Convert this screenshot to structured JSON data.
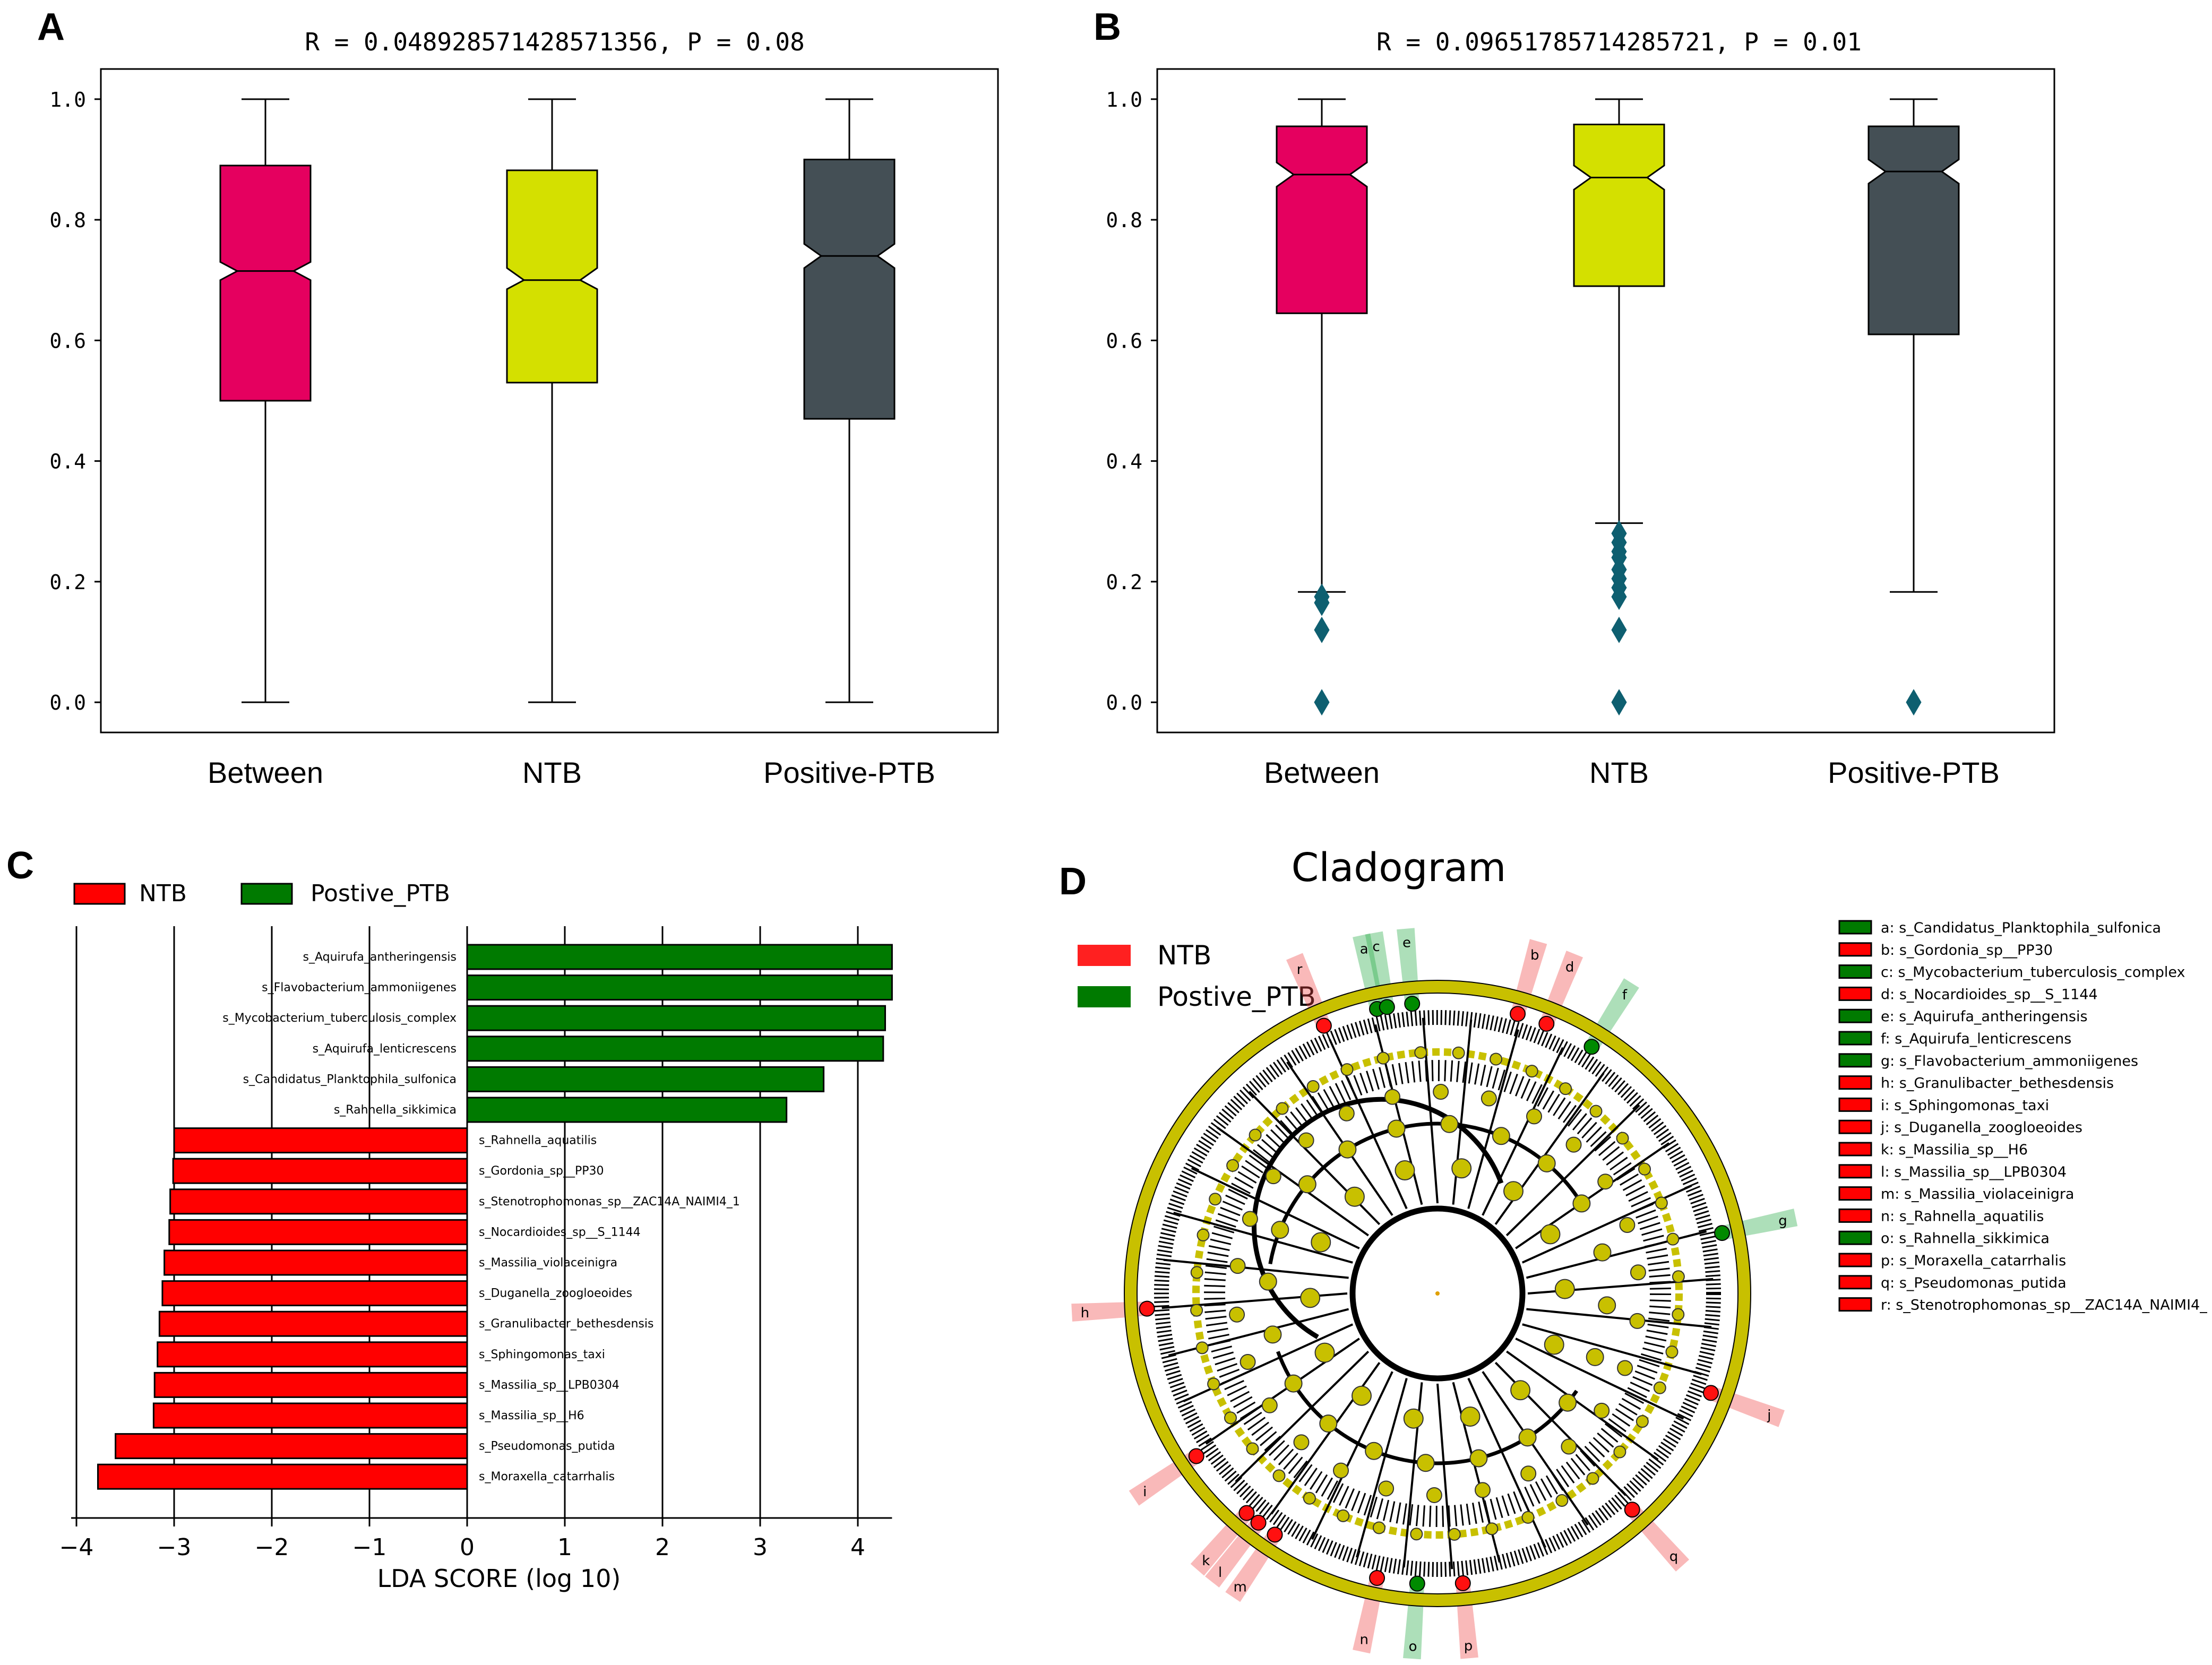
{
  "panel_labels": {
    "a": "A",
    "b": "B",
    "c": "C",
    "d": "D"
  },
  "colors": {
    "between": "#e5005f",
    "ntb": "#d4e000",
    "ptb": "#444f55",
    "outlier": "#0e5f70",
    "lda_red": "#ff0000",
    "lda_green": "#007a00",
    "node": "#c8c000"
  },
  "chart_data": [
    {
      "type": "boxplot",
      "panel": "A",
      "title": "R = 0.048928571428571356, P = 0.08",
      "categories": [
        "Between",
        "NTB",
        "Positive-PTB"
      ],
      "ylim": [
        -0.05,
        1.05
      ],
      "yticks": [
        "0.0",
        "0.2",
        "0.4",
        "0.6",
        "0.8",
        "1.0"
      ],
      "boxes": [
        {
          "name": "Between",
          "min": 0.0,
          "q1": 0.5,
          "median": 0.715,
          "q3": 0.89,
          "max": 1.0,
          "notch_lo": 0.7,
          "notch_hi": 0.73,
          "outliers": []
        },
        {
          "name": "NTB",
          "min": 0.0,
          "q1": 0.53,
          "median": 0.7,
          "q3": 0.882,
          "max": 1.0,
          "notch_lo": 0.685,
          "notch_hi": 0.72,
          "outliers": []
        },
        {
          "name": "Positive-PTB",
          "min": 0.0,
          "q1": 0.47,
          "median": 0.74,
          "q3": 0.9,
          "max": 1.0,
          "notch_lo": 0.72,
          "notch_hi": 0.76,
          "outliers": []
        }
      ]
    },
    {
      "type": "boxplot",
      "panel": "B",
      "title": "R = 0.09651785714285721, P = 0.01",
      "categories": [
        "Between",
        "NTB",
        "Positive-PTB"
      ],
      "ylim": [
        -0.05,
        1.05
      ],
      "yticks": [
        "0.0",
        "0.2",
        "0.4",
        "0.6",
        "0.8",
        "1.0"
      ],
      "boxes": [
        {
          "name": "Between",
          "min": 0.183,
          "q1": 0.645,
          "median": 0.875,
          "q3": 0.955,
          "max": 1.0,
          "notch_lo": 0.855,
          "notch_hi": 0.895,
          "outliers": [
            0.175,
            0.165,
            0.12,
            0.0
          ]
        },
        {
          "name": "NTB",
          "min": 0.297,
          "q1": 0.69,
          "median": 0.87,
          "q3": 0.958,
          "max": 1.0,
          "notch_lo": 0.85,
          "notch_hi": 0.89,
          "outliers": [
            0.28,
            0.265,
            0.25,
            0.24,
            0.22,
            0.205,
            0.19,
            0.175,
            0.12,
            0.0
          ]
        },
        {
          "name": "Positive-PTB",
          "min": 0.183,
          "q1": 0.61,
          "median": 0.88,
          "q3": 0.955,
          "max": 1.0,
          "notch_lo": 0.86,
          "notch_hi": 0.9,
          "outliers": [
            0.0
          ]
        }
      ]
    },
    {
      "type": "bar",
      "panel": "C",
      "orientation": "horizontal",
      "xlabel": "LDA SCORE (log 10)",
      "xlim": [
        -4,
        4.3
      ],
      "xticks": [
        "−4",
        "−3",
        "−2",
        "−1",
        "0",
        "1",
        "2",
        "3",
        "4"
      ],
      "legend": [
        {
          "name": "NTB",
          "color": "#ff0000"
        },
        {
          "name": "Postive_PTB",
          "color": "#007a00"
        }
      ],
      "bars": [
        {
          "label": "s_Aquirufa_antheringensis",
          "value": 4.35,
          "group": "Postive_PTB"
        },
        {
          "label": "s_Flavobacterium_ammoniigenes",
          "value": 4.35,
          "group": "Postive_PTB"
        },
        {
          "label": "s_Mycobacterium_tuberculosis_complex",
          "value": 4.28,
          "group": "Postive_PTB"
        },
        {
          "label": "s_Aquirufa_lenticrescens",
          "value": 4.26,
          "group": "Postive_PTB"
        },
        {
          "label": "s_Candidatus_Planktophila_sulfonica",
          "value": 3.65,
          "group": "Postive_PTB"
        },
        {
          "label": "s_Rahnella_sikkimica",
          "value": 3.27,
          "group": "Postive_PTB"
        },
        {
          "label": "s_Rahnella_aquatilis",
          "value": -3.0,
          "group": "NTB"
        },
        {
          "label": "s_Gordonia_sp__PP30",
          "value": -3.01,
          "group": "NTB"
        },
        {
          "label": "s_Stenotrophomonas_sp__ZAC14A_NAIMI4_1",
          "value": -3.04,
          "group": "NTB"
        },
        {
          "label": "s_Nocardioides_sp__S_1144",
          "value": -3.05,
          "group": "NTB"
        },
        {
          "label": "s_Massilia_violaceinigra",
          "value": -3.1,
          "group": "NTB"
        },
        {
          "label": "s_Duganella_zoogloeoides",
          "value": -3.12,
          "group": "NTB"
        },
        {
          "label": "s_Granulibacter_bethesdensis",
          "value": -3.15,
          "group": "NTB"
        },
        {
          "label": "s_Sphingomonas_taxi",
          "value": -3.17,
          "group": "NTB"
        },
        {
          "label": "s_Massilia_sp__LPB0304",
          "value": -3.2,
          "group": "NTB"
        },
        {
          "label": "s_Massilia_sp__H6",
          "value": -3.21,
          "group": "NTB"
        },
        {
          "label": "s_Pseudomonas_putida",
          "value": -3.6,
          "group": "NTB"
        },
        {
          "label": "s_Moraxella_catarrhalis",
          "value": -3.78,
          "group": "NTB"
        }
      ]
    },
    {
      "type": "cladogram",
      "panel": "D",
      "title": "Cladogram",
      "legend": [
        {
          "name": "NTB",
          "color": "#ff0000"
        },
        {
          "name": "Postive_PTB",
          "color": "#007a00"
        }
      ],
      "key": [
        {
          "text": "a: s_Candidatus_Planktophila_sulfonica",
          "group": "Postive_PTB"
        },
        {
          "text": "b: s_Gordonia_sp__PP30",
          "group": "NTB"
        },
        {
          "text": "c: s_Mycobacterium_tuberculosis_complex",
          "group": "Postive_PTB"
        },
        {
          "text": "d: s_Nocardioides_sp__S_1144",
          "group": "NTB"
        },
        {
          "text": "e: s_Aquirufa_antheringensis",
          "group": "Postive_PTB"
        },
        {
          "text": "f: s_Aquirufa_lenticrescens",
          "group": "Postive_PTB"
        },
        {
          "text": "g: s_Flavobacterium_ammoniigenes",
          "group": "Postive_PTB"
        },
        {
          "text": "h: s_Granulibacter_bethesdensis",
          "group": "NTB"
        },
        {
          "text": "i: s_Sphingomonas_taxi",
          "group": "NTB"
        },
        {
          "text": "j: s_Duganella_zoogloeoides",
          "group": "NTB"
        },
        {
          "text": "k: s_Massilia_sp__H6",
          "group": "NTB"
        },
        {
          "text": "l: s_Massilia_sp__LPB0304",
          "group": "NTB"
        },
        {
          "text": "m: s_Massilia_violaceinigra",
          "group": "NTB"
        },
        {
          "text": "n: s_Rahnella_aquatilis",
          "group": "NTB"
        },
        {
          "text": "o: s_Rahnella_sikkimica",
          "group": "Postive_PTB"
        },
        {
          "text": "p: s_Moraxella_catarrhalis",
          "group": "NTB"
        },
        {
          "text": "q: s_Pseudomonas_putida",
          "group": "NTB"
        },
        {
          "text": "r: s_Stenotrophomonas_sp__ZAC14A_NAIMI4_",
          "group": "NTB"
        }
      ],
      "highlights": [
        {
          "letter": "a",
          "angle": 102,
          "group": "Postive_PTB"
        },
        {
          "letter": "b",
          "angle": 74,
          "group": "NTB"
        },
        {
          "letter": "c",
          "angle": 100,
          "group": "Postive_PTB"
        },
        {
          "letter": "d",
          "angle": 68,
          "group": "NTB"
        },
        {
          "letter": "e",
          "angle": 95,
          "group": "Postive_PTB"
        },
        {
          "letter": "f",
          "angle": 58,
          "group": "Postive_PTB"
        },
        {
          "letter": "g",
          "angle": 12,
          "group": "Postive_PTB"
        },
        {
          "letter": "h",
          "angle": 183,
          "group": "NTB"
        },
        {
          "letter": "i",
          "angle": 214,
          "group": "NTB"
        },
        {
          "letter": "j",
          "angle": 340,
          "group": "NTB"
        },
        {
          "letter": "k",
          "angle": 229,
          "group": "NTB"
        },
        {
          "letter": "l",
          "angle": 232,
          "group": "NTB"
        },
        {
          "letter": "m",
          "angle": 236,
          "group": "NTB"
        },
        {
          "letter": "n",
          "angle": 258,
          "group": "NTB"
        },
        {
          "letter": "o",
          "angle": 266,
          "group": "Postive_PTB"
        },
        {
          "letter": "p",
          "angle": 275,
          "group": "NTB"
        },
        {
          "letter": "q",
          "angle": 312,
          "group": "NTB"
        },
        {
          "letter": "r",
          "angle": 113,
          "group": "NTB"
        }
      ]
    }
  ]
}
